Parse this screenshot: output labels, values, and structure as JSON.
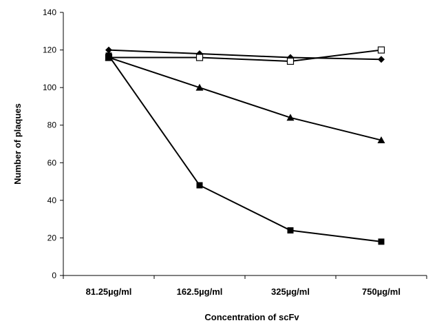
{
  "chart_data": {
    "type": "line",
    "title": "",
    "xlabel": "Concentration of scFv",
    "ylabel": "Number of plaques",
    "categories": [
      "81.25µg/ml",
      "162.5µg/ml",
      "325µg/ml",
      "750µg/ml"
    ],
    "ylim": [
      0,
      140
    ],
    "yticks": [
      0,
      20,
      40,
      60,
      80,
      100,
      120,
      140
    ],
    "grid": false,
    "legend": "none",
    "series": [
      {
        "marker": "diamond-filled",
        "color": "#000000",
        "values": [
          120,
          118,
          116,
          115
        ]
      },
      {
        "marker": "square-open",
        "color": "#000000",
        "values": [
          116,
          116,
          114,
          120
        ]
      },
      {
        "marker": "triangle-filled",
        "color": "#000000",
        "values": [
          116,
          100,
          84,
          72
        ]
      },
      {
        "marker": "square-filled",
        "color": "#000000",
        "values": [
          117,
          48,
          24,
          18
        ]
      }
    ]
  }
}
